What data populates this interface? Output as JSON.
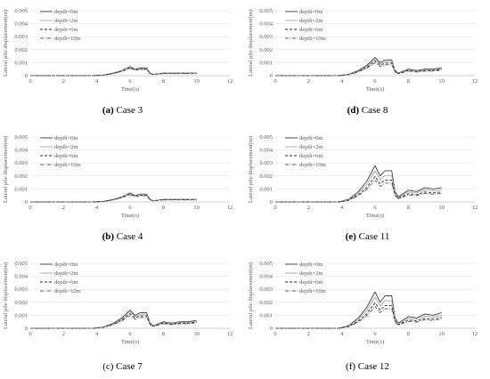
{
  "figure": {
    "panels": [
      {
        "tag": "(a)",
        "title": "Case 3"
      },
      {
        "tag": "(d)",
        "title": "Case 8"
      },
      {
        "tag": "(b)",
        "title": "Case 4"
      },
      {
        "tag": "(e)",
        "title": "Case 11"
      },
      {
        "tag": "(c)",
        "title": "Case 7"
      },
      {
        "tag": "(f)",
        "title": "Case 12"
      }
    ]
  },
  "chart_data": [
    {
      "type": "line",
      "title": "",
      "caption": "(a) Case 3",
      "xlabel": "Time(s)",
      "ylabel": "Lateral pile displacement(m)",
      "xlim": [
        0,
        12
      ],
      "ylim": [
        0,
        0.005
      ],
      "xticks": [
        "0",
        "2",
        "4",
        "6",
        "8",
        "10",
        "12"
      ],
      "yticks": [
        "0",
        "0.001",
        "0.002",
        "0.003",
        "0.004",
        "0.005"
      ],
      "grid": "horizontal",
      "legend": "top-left",
      "x": [
        0,
        3.8,
        4.4,
        5.0,
        5.5,
        6.0,
        6.3,
        6.6,
        7.0,
        7.2,
        7.4,
        8.0,
        8.5,
        9.0,
        9.5,
        10.0
      ],
      "series": [
        {
          "name": "depth=0m",
          "values": [
            0,
            0,
            5e-05,
            0.0002,
            0.0004,
            0.0007,
            0.0005,
            0.0006,
            0.0006,
            0.0002,
            0.0001,
            0.0002,
            0.0002,
            0.0002,
            0.0002,
            0.0002
          ]
        },
        {
          "name": "depth=2m",
          "values": [
            0,
            0,
            4e-05,
            0.00019,
            0.00038,
            0.00066,
            0.00048,
            0.00057,
            0.00057,
            0.00019,
            0.0001,
            0.00019,
            0.00019,
            0.00019,
            0.00019,
            0.00019
          ]
        },
        {
          "name": "depth=6m",
          "values": [
            0,
            0,
            4e-05,
            0.00017,
            0.00034,
            0.0006,
            0.00044,
            0.00052,
            0.00052,
            0.00017,
            9e-05,
            0.00017,
            0.00017,
            0.00017,
            0.00017,
            0.00017
          ]
        },
        {
          "name": "depth=10m",
          "values": [
            0,
            0,
            4e-05,
            0.00016,
            0.00032,
            0.00056,
            0.00041,
            0.00048,
            0.00048,
            0.00016,
            8e-05,
            0.00016,
            0.00016,
            0.00016,
            0.00016,
            0.00016
          ]
        }
      ]
    },
    {
      "type": "line",
      "title": "",
      "caption": "(d) Case 8",
      "xlabel": "Time(s)",
      "ylabel": "Lateral pile displacement(m)",
      "xlim": [
        0,
        12
      ],
      "ylim": [
        0,
        0.005
      ],
      "xticks": [
        "0",
        "2",
        "4",
        "6",
        "8",
        "10",
        "12"
      ],
      "yticks": [
        "0",
        "0.001",
        "0.002",
        "0.003",
        "0.004",
        "0.005"
      ],
      "grid": "horizontal",
      "legend": "top-left",
      "x": [
        0,
        3.8,
        4.4,
        5.0,
        5.5,
        6.0,
        6.3,
        6.6,
        7.0,
        7.2,
        7.4,
        8.0,
        8.5,
        9.0,
        9.5,
        10.0
      ],
      "series": [
        {
          "name": "depth=0m",
          "values": [
            0,
            0,
            0.0001,
            0.0004,
            0.0008,
            0.0014,
            0.001,
            0.0012,
            0.0012,
            0.0004,
            0.0002,
            0.0005,
            0.0004,
            0.0005,
            0.0005,
            0.0006
          ]
        },
        {
          "name": "depth=2m",
          "values": [
            0,
            0,
            9e-05,
            0.00036,
            0.00072,
            0.00126,
            0.0009,
            0.00108,
            0.00108,
            0.00036,
            0.00018,
            0.00045,
            0.00036,
            0.00045,
            0.00045,
            0.00054
          ]
        },
        {
          "name": "depth=6m",
          "values": [
            0,
            0,
            8e-05,
            0.00032,
            0.00064,
            0.00112,
            0.0008,
            0.00096,
            0.00096,
            0.00032,
            0.00016,
            0.0004,
            0.00032,
            0.0004,
            0.0004,
            0.00048
          ]
        },
        {
          "name": "depth=10m",
          "values": [
            0,
            0,
            7e-05,
            0.00028,
            0.00056,
            0.00098,
            0.0007,
            0.00084,
            0.00084,
            0.00028,
            0.00014,
            0.00035,
            0.00028,
            0.00035,
            0.00035,
            0.00042
          ]
        }
      ]
    },
    {
      "type": "line",
      "title": "",
      "caption": "(b) Case 4",
      "xlabel": "Time(s)",
      "ylabel": "Lateral pile displacement(m)",
      "xlim": [
        0,
        12
      ],
      "ylim": [
        0,
        0.005
      ],
      "xticks": [
        "0",
        "2",
        "4",
        "6",
        "8",
        "10",
        "12"
      ],
      "yticks": [
        "0",
        "0.001",
        "0.002",
        "0.003",
        "0.004",
        "0.005"
      ],
      "grid": "horizontal",
      "legend": "top-left",
      "x": [
        0,
        3.8,
        4.4,
        5.0,
        5.5,
        6.0,
        6.3,
        6.6,
        7.0,
        7.2,
        7.4,
        8.0,
        8.5,
        9.0,
        9.5,
        10.0
      ],
      "series": [
        {
          "name": "depth=0m",
          "values": [
            0,
            0,
            5e-05,
            0.0002,
            0.0004,
            0.0007,
            0.0005,
            0.0006,
            0.0006,
            0.0002,
            0.0001,
            0.0002,
            0.0002,
            0.0002,
            0.0002,
            0.0002
          ]
        },
        {
          "name": "depth=2m",
          "values": [
            0,
            0,
            4e-05,
            0.00019,
            0.00038,
            0.00066,
            0.00048,
            0.00057,
            0.00057,
            0.00019,
            0.0001,
            0.00019,
            0.00019,
            0.00019,
            0.00019,
            0.00019
          ]
        },
        {
          "name": "depth=6m",
          "values": [
            0,
            0,
            4e-05,
            0.00017,
            0.00034,
            0.0006,
            0.00044,
            0.00052,
            0.00052,
            0.00017,
            9e-05,
            0.00017,
            0.00017,
            0.00017,
            0.00017,
            0.00017
          ]
        },
        {
          "name": "depth=10m",
          "values": [
            0,
            0,
            4e-05,
            0.00016,
            0.00032,
            0.00056,
            0.00041,
            0.00048,
            0.00048,
            0.00016,
            8e-05,
            0.00016,
            0.00016,
            0.00016,
            0.00016,
            0.00016
          ]
        }
      ]
    },
    {
      "type": "line",
      "title": "",
      "caption": "(e) Case 11",
      "xlabel": "Time(s)",
      "ylabel": "Lateral pile displacement(m)",
      "xlim": [
        0,
        12
      ],
      "ylim": [
        0,
        0.005
      ],
      "xticks": [
        "0",
        "2",
        "4",
        "6",
        "8",
        "10",
        "12"
      ],
      "yticks": [
        "0",
        "0.001",
        "0.002",
        "0.003",
        "0.004",
        "0.005"
      ],
      "grid": "horizontal",
      "legend": "top-left",
      "x": [
        0,
        3.8,
        4.4,
        5.0,
        5.5,
        6.0,
        6.3,
        6.6,
        7.0,
        7.2,
        7.4,
        8.0,
        8.5,
        9.0,
        9.5,
        10.0
      ],
      "series": [
        {
          "name": "depth=0m",
          "values": [
            0,
            0,
            0.0002,
            0.0008,
            0.0016,
            0.0028,
            0.002,
            0.0024,
            0.0024,
            0.0008,
            0.0004,
            0.0009,
            0.0008,
            0.0011,
            0.001,
            0.0011
          ]
        },
        {
          "name": "depth=2m",
          "values": [
            0,
            0,
            0.00017,
            0.00068,
            0.00136,
            0.00238,
            0.0017,
            0.00204,
            0.00204,
            0.00068,
            0.00034,
            0.00077,
            0.00068,
            0.00094,
            0.00085,
            0.00094
          ]
        },
        {
          "name": "depth=6m",
          "values": [
            0,
            0,
            0.00014,
            0.00056,
            0.00112,
            0.00196,
            0.0014,
            0.00168,
            0.00168,
            0.00056,
            0.00028,
            0.00063,
            0.00056,
            0.00077,
            0.0007,
            0.00077
          ]
        },
        {
          "name": "depth=10m",
          "values": [
            0,
            0,
            0.00012,
            0.00048,
            0.00096,
            0.00168,
            0.0012,
            0.00144,
            0.00144,
            0.00048,
            0.00024,
            0.00054,
            0.00048,
            0.00066,
            0.0006,
            0.00066
          ]
        }
      ]
    },
    {
      "type": "line",
      "title": "",
      "caption": "(c) Case 7",
      "xlabel": "Time(s)",
      "ylabel": "Lateral pile displacement(m)",
      "xlim": [
        0,
        12
      ],
      "ylim": [
        0,
        0.005
      ],
      "xticks": [
        "0",
        "2",
        "4",
        "6",
        "8",
        "10",
        "12"
      ],
      "yticks": [
        "0",
        "0.001",
        "0.002",
        "0.003",
        "0.004",
        "0.005"
      ],
      "grid": "horizontal",
      "legend": "top-left",
      "x": [
        0,
        3.8,
        4.4,
        5.0,
        5.5,
        6.0,
        6.3,
        6.6,
        7.0,
        7.2,
        7.4,
        8.0,
        8.5,
        9.0,
        9.5,
        10.0
      ],
      "series": [
        {
          "name": "depth=0m",
          "values": [
            0,
            0,
            0.0001,
            0.0004,
            0.0008,
            0.0014,
            0.001,
            0.0012,
            0.0012,
            0.0004,
            0.0002,
            0.0005,
            0.0004,
            0.0005,
            0.0005,
            0.0006
          ]
        },
        {
          "name": "depth=2m",
          "values": [
            0,
            0,
            9e-05,
            0.00036,
            0.00072,
            0.00126,
            0.0009,
            0.00108,
            0.00108,
            0.00036,
            0.00018,
            0.00045,
            0.00036,
            0.00045,
            0.00045,
            0.00054
          ]
        },
        {
          "name": "depth=6m",
          "values": [
            0,
            0,
            8e-05,
            0.00032,
            0.00064,
            0.00112,
            0.0008,
            0.00096,
            0.00096,
            0.00032,
            0.00016,
            0.0004,
            0.00032,
            0.0004,
            0.0004,
            0.00048
          ]
        },
        {
          "name": "depth=10m",
          "values": [
            0,
            0,
            7e-05,
            0.00028,
            0.00056,
            0.00098,
            0.0007,
            0.00084,
            0.00084,
            0.00028,
            0.00014,
            0.00035,
            0.00028,
            0.00035,
            0.00035,
            0.00042
          ]
        }
      ]
    },
    {
      "type": "line",
      "title": "",
      "caption": "(f) Case 12",
      "xlabel": "Time(s)",
      "ylabel": "Lateral pile displacement(m)",
      "xlim": [
        0,
        12
      ],
      "ylim": [
        0,
        0.005
      ],
      "xticks": [
        "0",
        "2",
        "4",
        "6",
        "8",
        "10",
        "12"
      ],
      "yticks": [
        "0",
        "0.001",
        "0.002",
        "0.003",
        "0.004",
        "0.005"
      ],
      "grid": "horizontal",
      "legend": "top-left",
      "x": [
        0,
        3.8,
        4.4,
        5.0,
        5.5,
        6.0,
        6.3,
        6.6,
        7.0,
        7.2,
        7.4,
        8.0,
        8.5,
        9.0,
        9.5,
        10.0
      ],
      "series": [
        {
          "name": "depth=0m",
          "values": [
            0,
            0,
            0.0002,
            0.0008,
            0.0016,
            0.0028,
            0.002,
            0.0025,
            0.0025,
            0.0008,
            0.0004,
            0.0009,
            0.0008,
            0.0011,
            0.001,
            0.0012
          ]
        },
        {
          "name": "depth=2m",
          "values": [
            0,
            0,
            0.00017,
            0.00068,
            0.00136,
            0.00238,
            0.0017,
            0.00213,
            0.00213,
            0.00068,
            0.00034,
            0.00077,
            0.00068,
            0.00094,
            0.00085,
            0.00102
          ]
        },
        {
          "name": "depth=6m",
          "values": [
            0,
            0,
            0.00014,
            0.00056,
            0.00112,
            0.00196,
            0.0014,
            0.00175,
            0.00175,
            0.00056,
            0.00028,
            0.00063,
            0.00056,
            0.00077,
            0.0007,
            0.00084
          ]
        },
        {
          "name": "depth=10m",
          "values": [
            0,
            0,
            0.00012,
            0.00048,
            0.00096,
            0.00168,
            0.0012,
            0.0015,
            0.0015,
            0.00048,
            0.00024,
            0.00054,
            0.00048,
            0.00066,
            0.0006,
            0.00072
          ]
        }
      ]
    }
  ],
  "styles": {
    "axis_color": "#bfbfbf",
    "grid_color": "#e3e3e3",
    "tick_color": "#595959",
    "series_styles": [
      {
        "color": "#404040",
        "dash": "solid"
      },
      {
        "color": "#a6a6a6",
        "dash": "solid"
      },
      {
        "color": "#262626",
        "dash": "dashed"
      },
      {
        "color": "#595959",
        "dash": "dash-dot"
      }
    ]
  }
}
